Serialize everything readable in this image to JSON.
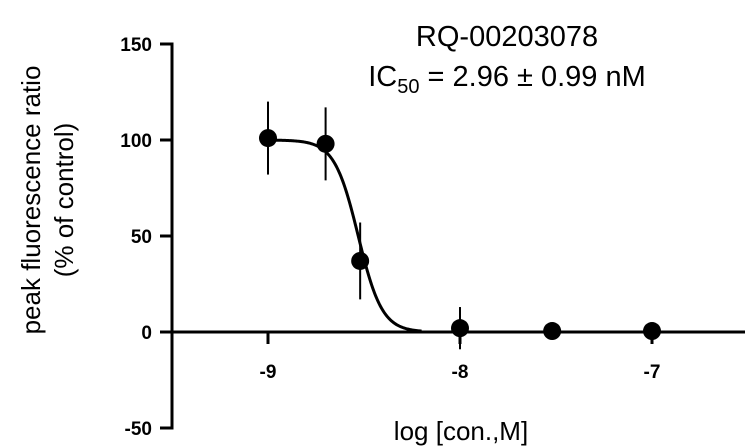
{
  "chart_data": {
    "type": "scatter",
    "title": "RQ-00203078",
    "subtitle": {
      "prefix": "IC",
      "subscript": "50",
      "suffix": " = 2.96 ± 0.99 nM"
    },
    "xlabel": "log [con.,M]",
    "ylabel_line1": "peak fluorescence ratio",
    "ylabel_line2": "(% of control)",
    "xlim": [
      -9.1,
      -6.5
    ],
    "ylim": [
      -50,
      150
    ],
    "x_ticks": [
      -9,
      -8,
      -7
    ],
    "x_tick_labels": [
      "-9",
      "-8",
      "-7"
    ],
    "y_ticks": [
      150,
      100,
      50,
      0,
      -50
    ],
    "y_tick_labels": [
      "150",
      "100",
      "50",
      "0",
      "-50"
    ],
    "points": [
      {
        "x": -9.0,
        "y": 101,
        "err": 19
      },
      {
        "x": -8.7,
        "y": 98,
        "err": 19
      },
      {
        "x": -8.52,
        "y": 37,
        "err": 20
      },
      {
        "x": -8.0,
        "y": 2,
        "err": 11
      },
      {
        "x": -7.52,
        "y": 0.5,
        "err": 0
      },
      {
        "x": -7.0,
        "y": 0.5,
        "err": 0
      }
    ],
    "fit_curve": {
      "type": "sigmoid",
      "top": 100,
      "bottom": 0,
      "log_ic50": -8.53,
      "hill_slope": -7,
      "x_range": [
        -9.0,
        -8.2
      ]
    },
    "grid": false,
    "legend": "none"
  }
}
